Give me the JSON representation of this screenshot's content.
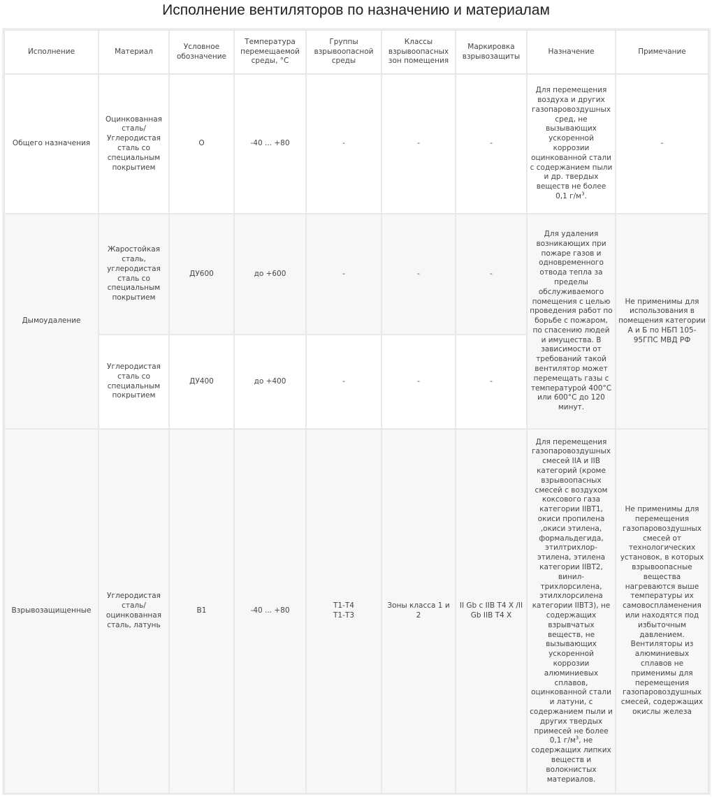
{
  "title": "Исполнение вентиляторов по назначению и материалам",
  "headers": [
    "Исполнение",
    "Материал",
    "Условное обозначение",
    "Температура перемещаемой среды, °С",
    "Группы взрывоопасной среды",
    "Классы взрывоопасных зон помещения",
    "Маркировка взрывозащиты",
    "Назначение",
    "Примечание"
  ],
  "rows": {
    "general": {
      "execution": "Общего назначения",
      "material": "Оцинкованная сталь/ Углеродистая сталь со специальным покрытием",
      "designation": "О",
      "temperature": "-40 ... +80",
      "groups": "-",
      "zones": "-",
      "marking": "-",
      "purpose": "Для перемещения воздуха и других газопаровоздушных сред, не вызывающих ускоренной коррозии оцинкованной стали с содержанием пыли и др. твердых веществ не более 0,1 г/м",
      "purpose_sup": "3",
      "purpose_end": ".",
      "note": "-"
    },
    "smoke": {
      "execution": "Дымоудаление",
      "purpose": "Для удаления возникающих при пожаре газов и одновременного отвода тепла за пределы обслуживаемого помещения с целью проведения работ по борьбе с пожаром, по спасению людей и имущества. В зависимости от требований такой вентилятор может перемещать газы с температурой 400°С или 600°С до 120 минут.",
      "note": "Не применимы для использования в помещения категории А и Б по НБП 105-95ГПС МВД РФ",
      "variants": [
        {
          "material": "Жаростойкая сталь, углеродистая сталь  со специальным покрытием",
          "designation": "ДУ600",
          "temperature": "до +600",
          "groups": "-",
          "zones": "-",
          "marking": "-"
        },
        {
          "material": "Углеродистая сталь со специальным покрытием",
          "designation": "ДУ400",
          "temperature": "до +400",
          "groups": "-",
          "zones": "-",
          "marking": "-"
        }
      ]
    },
    "explosion": {
      "execution": "Взрывозащищенные",
      "material": "Углеродистая сталь/ оцинкованная сталь, латунь",
      "designation": "В1",
      "temperature": "-40 ... +80",
      "groups_1": "Т1-Т4",
      "groups_2": "Т1-Т3",
      "zones": "Зоны класса 1 и 2",
      "marking": "II Gb c IIB T4 X /II Gb  IIB T4 X",
      "purpose": "Для перемещения газопаровоздушных смесей IIA и IIB категорий (кроме взрывоопасных смесей с воздухом коксового газа категории  IIBT1, окиси пропилена ,окиси этилена, формальдегида, этилтрихлор-этилена, этилена категории IIBT2, винил-трихлорсилена, этилхлорсилена категории IIBT3), не содержащих взрывчатых веществ, не вызывающих ускоренной коррозии алюминиевых сплавов, оцинкованной стали и латуни, с содержанием пыли и других твердых примесей не более 0,1 г/м",
      "purpose_sup": "3",
      "purpose_end": ", не содержащих липких веществ и волокнистых материалов.",
      "note": "Не применимы для перемещения газопаровоздушных смесей от технологических установок, в которых взрывоопасные вещества нагреваются выше температуры их самовоспламенения или находятся под избыточным давлением. Вентиляторы из алюминиевых сплавов не применимы для перемещения газопаровоздушных смесей, содержащих окислы железа"
    }
  }
}
